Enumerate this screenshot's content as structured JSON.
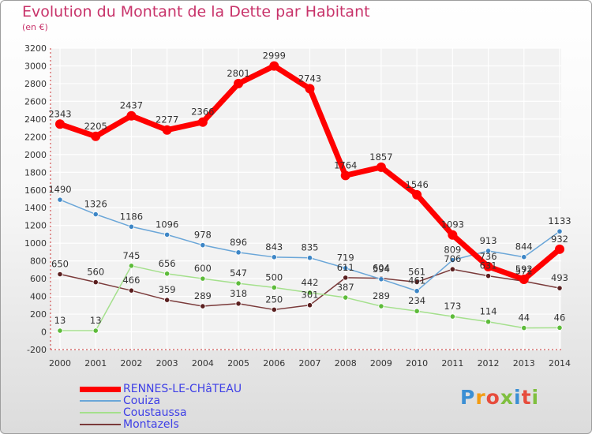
{
  "title": "Evolution du Montant de la Dette par Habitant",
  "subtitle": "(en €)",
  "logo": {
    "text": "Proxiti",
    "colors": [
      "#3b8fd4",
      "#f39c12",
      "#e74c3c",
      "#7fbf3f",
      "#3b8fd4",
      "#e74c3c",
      "#7fbf3f"
    ]
  },
  "chart_data": {
    "type": "line",
    "x": [
      2000,
      2001,
      2002,
      2003,
      2004,
      2005,
      2006,
      2007,
      2008,
      2009,
      2010,
      2011,
      2012,
      2013,
      2014
    ],
    "ylim": [
      -200,
      3200
    ],
    "yticks": [
      -200,
      0,
      200,
      400,
      600,
      800,
      1000,
      1200,
      1400,
      1600,
      1800,
      2000,
      2200,
      2400,
      2600,
      2800,
      3000,
      3200
    ],
    "grid": true,
    "legend_position": "bottom-left",
    "series": [
      {
        "name": "RENNES-LE-CHâTEAU",
        "color": "#ff0000",
        "marker_color": "#ff0000",
        "width": 7,
        "values": [
          2343,
          2205,
          2437,
          2277,
          2366,
          2801,
          2999,
          2743,
          1764,
          1857,
          1546,
          1093,
          736,
          592,
          932
        ],
        "labels": [
          "2343",
          "2205",
          "2437",
          "2277",
          "2366",
          "2801",
          "2999",
          "2743",
          "1764",
          "1857",
          "1546",
          "1093",
          "736",
          "592",
          "932"
        ]
      },
      {
        "name": "Couiza",
        "color": "#6aa6d8",
        "marker_color": "#3d86c6",
        "width": 1.5,
        "values": [
          1490,
          1326,
          1186,
          1096,
          978,
          896,
          843,
          835,
          719,
          594,
          461,
          809,
          913,
          844,
          1133
        ],
        "labels": [
          "1490",
          "1326",
          "1186",
          "1096",
          "978",
          "896",
          "843",
          "835",
          "719",
          "594",
          "461",
          "809",
          "913",
          "844",
          "1133"
        ]
      },
      {
        "name": "Coustaussa",
        "color": "#a4e08c",
        "marker_color": "#5dbb3a",
        "width": 1.5,
        "values": [
          13,
          13,
          745,
          656,
          600,
          547,
          500,
          442,
          387,
          289,
          234,
          173,
          114,
          44,
          46
        ],
        "labels": [
          "13",
          "13",
          "745",
          "656",
          "600",
          "547",
          "500",
          "442",
          "387",
          "289",
          "234",
          "173",
          "114",
          "44",
          "46"
        ]
      },
      {
        "name": "Montazels",
        "color": "#7a3a3a",
        "marker_color": "#5a1f1f",
        "width": 1.5,
        "values": [
          650,
          560,
          466,
          359,
          289,
          318,
          250,
          301,
          611,
          604,
          561,
          706,
          631,
          571,
          493
        ],
        "labels": [
          "650",
          "560",
          "466",
          "359",
          "289",
          "318",
          "250",
          "301",
          "611",
          "604",
          "561",
          "706",
          "631",
          "571",
          "493"
        ]
      }
    ]
  }
}
